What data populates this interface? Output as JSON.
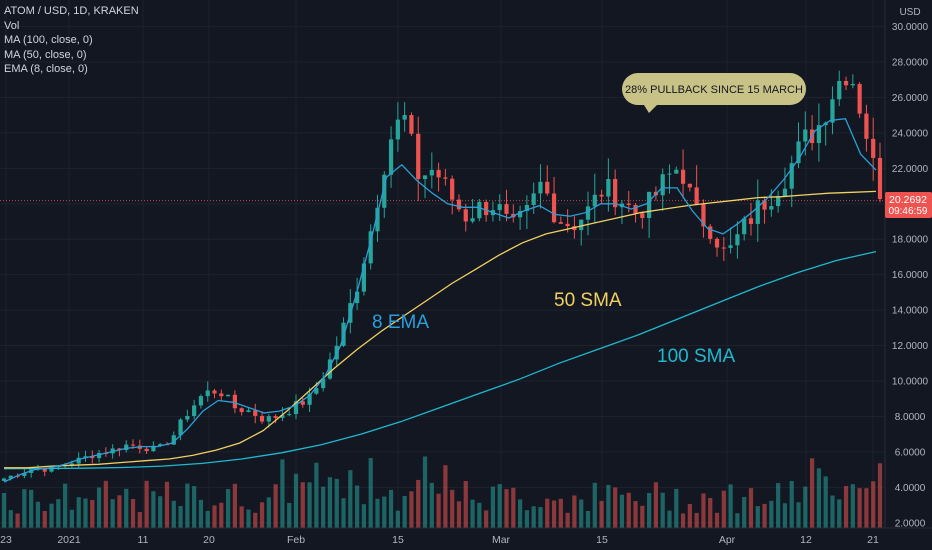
{
  "legend": {
    "symbol_line": "ATOM / USD, 1D, KRAKEN",
    "vol": "Vol",
    "ma100": "MA (100, close, 0)",
    "ma50": "MA (50, close, 0)",
    "ema8": "EMA (8, close, 0)"
  },
  "currency": "USD",
  "price_label": "20.2692",
  "countdown": "09:46:59",
  "annotations": {
    "callout": "28% PULLBACK SINCE 15 MARCH",
    "ema_label": "8 EMA",
    "sma50_label": "50 SMA",
    "sma100_label": "100 SMA"
  },
  "colors": {
    "background": "#131722",
    "up": "#26a69a",
    "down": "#ef5350",
    "ema8": "#2a9fd8",
    "sma50": "#f0d060",
    "sma100": "#1fb8cf",
    "callout_bg": "#c9c286",
    "price_tag": "#ef5350"
  },
  "chart_data": {
    "type": "candlestick",
    "y_axis_ticks": [
      "30.0000",
      "28.0000",
      "26.0000",
      "24.0000",
      "22.0000",
      "20.0000",
      "18.0000",
      "16.0000",
      "14.0000",
      "12.0000",
      "10.0000",
      "8.0000",
      "6.0000",
      "4.0000",
      "2.0000"
    ],
    "x_axis_ticks": [
      "23",
      "2021",
      "11",
      "20",
      "Feb",
      "15",
      "Mar",
      "15",
      "Apr",
      "12",
      "21"
    ],
    "ylim": [
      1.7,
      30.3
    ],
    "close_path": [
      4.5,
      4.8,
      5.1,
      5.0,
      5.3,
      5.6,
      5.9,
      6.1,
      6.4,
      6.3,
      6.1,
      6.9,
      8.3,
      9.3,
      9.5,
      8.5,
      8.3,
      7.8,
      8.1,
      8.6,
      9.1,
      10.7,
      12.8,
      15.5,
      19.0,
      23.5,
      25.0,
      21.5,
      22.0,
      20.5,
      19.3,
      19.8,
      20.0,
      18.5,
      19.4,
      21.2,
      19.2,
      18.8,
      19.6,
      20.9,
      20.4,
      19.5,
      20.0,
      21.3,
      22.2,
      19.5,
      18.6,
      17.0,
      18.5,
      19.7,
      20.6,
      21.8,
      23.5,
      24.4,
      26.5,
      27.8,
      24.5,
      20.27
    ],
    "ema8_path": [
      4.3,
      4.7,
      5.0,
      5.1,
      5.3,
      5.6,
      5.8,
      6.0,
      6.2,
      6.3,
      6.3,
      6.5,
      7.3,
      8.3,
      8.9,
      8.8,
      8.5,
      8.2,
      8.3,
      8.6,
      9.2,
      10.3,
      12.0,
      14.8,
      18.0,
      21.5,
      22.2,
      21.3,
      20.6,
      20.0,
      19.8,
      19.8,
      19.5,
      19.2,
      19.6,
      19.9,
      19.4,
      19.3,
      19.5,
      20.0,
      20.0,
      19.7,
      20.0,
      20.9,
      20.9,
      19.6,
      18.6,
      18.3,
      18.9,
      19.6,
      20.4,
      21.4,
      22.6,
      24.1,
      24.7,
      24.8,
      22.8,
      21.9
    ],
    "sma50_path": [
      5.1,
      5.1,
      5.2,
      5.25,
      5.3,
      5.4,
      5.5,
      5.6,
      5.8,
      6.1,
      6.5,
      7.2,
      8.3,
      9.5,
      10.7,
      11.8,
      12.8,
      13.7,
      14.6,
      15.5,
      16.3,
      17.1,
      17.8,
      18.3,
      18.6,
      18.9,
      19.2,
      19.5,
      19.7,
      19.9,
      20.05,
      20.2,
      20.35,
      20.4,
      20.5,
      20.6,
      20.65,
      20.7
    ],
    "sma100_path": [
      5.05,
      5.06,
      5.08,
      5.12,
      5.2,
      5.35,
      5.6,
      5.95,
      6.4,
      7.0,
      7.7,
      8.5,
      9.3,
      10.1,
      11.0,
      11.8,
      12.6,
      13.5,
      14.4,
      15.3,
      16.1,
      16.8,
      17.3
    ],
    "volume_ylim": [
      0,
      10
    ]
  }
}
